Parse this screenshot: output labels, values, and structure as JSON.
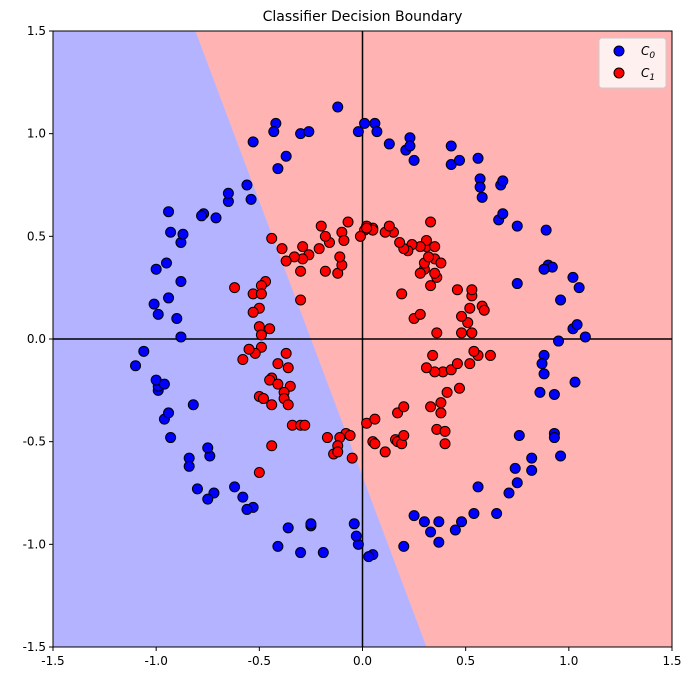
{
  "chart_data": {
    "type": "scatter",
    "title": "Classifier Decision Boundary",
    "xlabel": "",
    "ylabel": "",
    "xlim": [
      -1.5,
      1.5
    ],
    "ylim": [
      -1.5,
      1.5
    ],
    "xticks": [
      "-1.5",
      "-1.0",
      "-0.5",
      "0.0",
      "0.5",
      "1.0",
      "1.5"
    ],
    "yticks": [
      "-1.5",
      "-1.0",
      "-0.5",
      "0.0",
      "0.5",
      "1.0",
      "1.5"
    ],
    "grid": false,
    "legend_position": "top-right",
    "decision_boundary": {
      "line_points": [
        [
          -0.81,
          1.5
        ],
        [
          0.31,
          -1.5
        ]
      ],
      "left_region_class": "C0",
      "right_region_class": "C1",
      "left_region_color": "#b3b3ff",
      "right_region_color": "#ffb3b3"
    },
    "axes_lines": {
      "x0": 0.0,
      "y0": 0.0
    },
    "series": [
      {
        "name": "C0",
        "label_base": "C",
        "label_sub": "0",
        "color": "#0000ff",
        "points": [
          [
            -0.12,
            1.13
          ],
          [
            0.01,
            1.05
          ],
          [
            0.06,
            1.05
          ],
          [
            0.07,
            1.01
          ],
          [
            -0.02,
            1.01
          ],
          [
            -0.42,
            1.05
          ],
          [
            -0.43,
            1.01
          ],
          [
            -0.3,
            1.0
          ],
          [
            -0.26,
            1.01
          ],
          [
            -0.53,
            0.96
          ],
          [
            -0.37,
            0.89
          ],
          [
            -0.41,
            0.83
          ],
          [
            0.13,
            0.95
          ],
          [
            0.23,
            0.98
          ],
          [
            0.21,
            0.92
          ],
          [
            0.23,
            0.94
          ],
          [
            0.25,
            0.87
          ],
          [
            0.43,
            0.94
          ],
          [
            0.43,
            0.85
          ],
          [
            0.47,
            0.87
          ],
          [
            0.56,
            0.88
          ],
          [
            0.57,
            0.78
          ],
          [
            0.57,
            0.74
          ],
          [
            0.67,
            0.75
          ],
          [
            0.68,
            0.77
          ],
          [
            0.58,
            0.69
          ],
          [
            0.66,
            0.58
          ],
          [
            0.68,
            0.61
          ],
          [
            0.75,
            0.55
          ],
          [
            0.89,
            0.53
          ],
          [
            0.9,
            0.36
          ],
          [
            0.92,
            0.35
          ],
          [
            0.88,
            0.34
          ],
          [
            1.02,
            0.3
          ],
          [
            1.05,
            0.25
          ],
          [
            0.96,
            0.19
          ],
          [
            0.75,
            0.27
          ],
          [
            1.02,
            0.05
          ],
          [
            1.04,
            0.07
          ],
          [
            1.08,
            0.01
          ],
          [
            0.95,
            -0.01
          ],
          [
            0.88,
            -0.08
          ],
          [
            0.87,
            -0.12
          ],
          [
            0.88,
            -0.17
          ],
          [
            0.93,
            -0.27
          ],
          [
            0.86,
            -0.26
          ],
          [
            1.03,
            -0.21
          ],
          [
            0.93,
            -0.46
          ],
          [
            0.93,
            -0.48
          ],
          [
            0.76,
            -0.47
          ],
          [
            0.96,
            -0.57
          ],
          [
            0.82,
            -0.58
          ],
          [
            0.82,
            -0.64
          ],
          [
            0.74,
            -0.63
          ],
          [
            0.75,
            -0.7
          ],
          [
            0.71,
            -0.75
          ],
          [
            0.56,
            -0.72
          ],
          [
            0.65,
            -0.85
          ],
          [
            0.54,
            -0.85
          ],
          [
            0.48,
            -0.89
          ],
          [
            0.45,
            -0.93
          ],
          [
            0.37,
            -0.89
          ],
          [
            0.3,
            -0.89
          ],
          [
            0.33,
            -0.94
          ],
          [
            0.37,
            -0.99
          ],
          [
            0.25,
            -0.86
          ],
          [
            0.2,
            -1.01
          ],
          [
            0.05,
            -1.05
          ],
          [
            0.03,
            -1.06
          ],
          [
            -0.02,
            -1.0
          ],
          [
            -0.03,
            -0.96
          ],
          [
            -0.04,
            -0.9
          ],
          [
            -0.19,
            -1.04
          ],
          [
            -0.25,
            -0.91
          ],
          [
            -0.25,
            -0.9
          ],
          [
            -0.36,
            -0.92
          ],
          [
            -0.3,
            -1.04
          ],
          [
            -0.41,
            -1.01
          ],
          [
            -0.53,
            -0.82
          ],
          [
            -0.56,
            -0.83
          ],
          [
            -0.58,
            -0.77
          ],
          [
            -0.62,
            -0.72
          ],
          [
            -0.72,
            -0.75
          ],
          [
            -0.75,
            -0.78
          ],
          [
            -0.8,
            -0.73
          ],
          [
            -0.74,
            -0.57
          ],
          [
            -0.75,
            -0.53
          ],
          [
            -0.84,
            -0.58
          ],
          [
            -0.84,
            -0.62
          ],
          [
            -0.82,
            -0.32
          ],
          [
            -0.93,
            -0.48
          ],
          [
            -0.96,
            -0.39
          ],
          [
            -0.94,
            -0.36
          ],
          [
            -0.99,
            -0.25
          ],
          [
            -0.99,
            -0.23
          ],
          [
            -1.0,
            -0.2
          ],
          [
            -0.96,
            -0.22
          ],
          [
            -1.1,
            -0.13
          ],
          [
            -1.06,
            -0.06
          ],
          [
            -0.88,
            0.01
          ],
          [
            -0.9,
            0.1
          ],
          [
            -0.99,
            0.12
          ],
          [
            -1.01,
            0.17
          ],
          [
            -0.94,
            0.2
          ],
          [
            -0.88,
            0.28
          ],
          [
            -0.95,
            0.37
          ],
          [
            -1.0,
            0.34
          ],
          [
            -0.88,
            0.47
          ],
          [
            -0.93,
            0.52
          ],
          [
            -0.87,
            0.51
          ],
          [
            -0.94,
            0.62
          ],
          [
            -0.77,
            0.61
          ],
          [
            -0.78,
            0.6
          ],
          [
            -0.71,
            0.59
          ],
          [
            -0.65,
            0.67
          ],
          [
            -0.65,
            0.71
          ],
          [
            -0.56,
            0.75
          ],
          [
            -0.54,
            0.68
          ]
        ]
      },
      {
        "name": "C1",
        "label_base": "C",
        "label_sub": "1",
        "color": "#ff0000",
        "points": [
          [
            -0.07,
            0.57
          ],
          [
            -0.1,
            0.52
          ],
          [
            -0.09,
            0.48
          ],
          [
            -0.16,
            0.47
          ],
          [
            -0.18,
            0.5
          ],
          [
            -0.2,
            0.55
          ],
          [
            -0.21,
            0.44
          ],
          [
            -0.26,
            0.41
          ],
          [
            -0.29,
            0.45
          ],
          [
            -0.29,
            0.39
          ],
          [
            -0.33,
            0.4
          ],
          [
            -0.18,
            0.33
          ],
          [
            -0.12,
            0.32
          ],
          [
            -0.1,
            0.36
          ],
          [
            -0.11,
            0.4
          ],
          [
            -0.3,
            0.33
          ],
          [
            -0.37,
            0.38
          ],
          [
            -0.39,
            0.44
          ],
          [
            -0.44,
            0.49
          ],
          [
            -0.3,
            0.19
          ],
          [
            -0.47,
            0.28
          ],
          [
            -0.49,
            0.26
          ],
          [
            -0.53,
            0.22
          ],
          [
            -0.49,
            0.22
          ],
          [
            -0.5,
            0.15
          ],
          [
            -0.53,
            0.13
          ],
          [
            -0.62,
            0.25
          ],
          [
            -0.5,
            0.06
          ],
          [
            -0.45,
            0.05
          ],
          [
            -0.49,
            0.02
          ],
          [
            -0.49,
            -0.04
          ],
          [
            -0.52,
            -0.07
          ],
          [
            -0.58,
            -0.1
          ],
          [
            -0.55,
            -0.05
          ],
          [
            -0.37,
            -0.07
          ],
          [
            -0.41,
            -0.12
          ],
          [
            -0.36,
            -0.14
          ],
          [
            -0.35,
            -0.23
          ],
          [
            -0.38,
            -0.26
          ],
          [
            -0.44,
            -0.19
          ],
          [
            -0.45,
            -0.2
          ],
          [
            -0.41,
            -0.22
          ],
          [
            -0.5,
            -0.28
          ],
          [
            -0.48,
            -0.29
          ],
          [
            -0.44,
            -0.32
          ],
          [
            -0.38,
            -0.29
          ],
          [
            -0.36,
            -0.32
          ],
          [
            -0.34,
            -0.42
          ],
          [
            -0.3,
            -0.42
          ],
          [
            -0.28,
            -0.42
          ],
          [
            -0.44,
            -0.52
          ],
          [
            -0.5,
            -0.65
          ],
          [
            -0.17,
            -0.48
          ],
          [
            -0.08,
            -0.46
          ],
          [
            -0.06,
            -0.47
          ],
          [
            -0.11,
            -0.48
          ],
          [
            -0.12,
            -0.52
          ],
          [
            -0.14,
            -0.56
          ],
          [
            -0.12,
            -0.55
          ],
          [
            -0.05,
            -0.58
          ],
          [
            0.02,
            -0.41
          ],
          [
            0.06,
            -0.39
          ],
          [
            0.05,
            -0.5
          ],
          [
            0.06,
            -0.51
          ],
          [
            0.11,
            -0.55
          ],
          [
            0.16,
            -0.49
          ],
          [
            0.17,
            -0.5
          ],
          [
            0.19,
            -0.51
          ],
          [
            0.2,
            -0.47
          ],
          [
            0.17,
            -0.36
          ],
          [
            0.2,
            -0.33
          ],
          [
            0.33,
            -0.33
          ],
          [
            0.36,
            -0.44
          ],
          [
            0.4,
            -0.51
          ],
          [
            0.4,
            -0.45
          ],
          [
            0.38,
            -0.36
          ],
          [
            0.38,
            -0.31
          ],
          [
            0.41,
            -0.26
          ],
          [
            0.39,
            -0.16
          ],
          [
            0.35,
            -0.16
          ],
          [
            0.31,
            -0.14
          ],
          [
            0.34,
            -0.08
          ],
          [
            0.43,
            -0.15
          ],
          [
            0.46,
            -0.12
          ],
          [
            0.47,
            -0.24
          ],
          [
            0.52,
            -0.12
          ],
          [
            0.56,
            -0.08
          ],
          [
            0.62,
            -0.08
          ],
          [
            0.54,
            -0.06
          ],
          [
            0.36,
            0.03
          ],
          [
            0.48,
            0.03
          ],
          [
            0.53,
            0.03
          ],
          [
            0.51,
            0.08
          ],
          [
            0.48,
            0.11
          ],
          [
            0.58,
            0.16
          ],
          [
            0.59,
            0.14
          ],
          [
            0.53,
            0.21
          ],
          [
            0.53,
            0.24
          ],
          [
            0.52,
            0.15
          ],
          [
            0.46,
            0.24
          ],
          [
            0.36,
            0.3
          ],
          [
            0.35,
            0.32
          ],
          [
            0.3,
            0.34
          ],
          [
            0.28,
            0.32
          ],
          [
            0.3,
            0.37
          ],
          [
            0.35,
            0.39
          ],
          [
            0.38,
            0.37
          ],
          [
            0.32,
            0.4
          ],
          [
            0.31,
            0.45
          ],
          [
            0.31,
            0.48
          ],
          [
            0.35,
            0.45
          ],
          [
            0.28,
            0.45
          ],
          [
            0.24,
            0.46
          ],
          [
            0.22,
            0.43
          ],
          [
            0.2,
            0.44
          ],
          [
            0.18,
            0.47
          ],
          [
            0.15,
            0.52
          ],
          [
            0.11,
            0.52
          ],
          [
            0.13,
            0.55
          ],
          [
            0.05,
            0.54
          ],
          [
            0.02,
            0.55
          ],
          [
            0.01,
            0.53
          ],
          [
            -0.01,
            0.5
          ],
          [
            0.05,
            0.53
          ],
          [
            0.19,
            0.22
          ],
          [
            0.25,
            0.1
          ],
          [
            0.28,
            0.12
          ],
          [
            0.33,
            0.26
          ],
          [
            0.33,
            0.57
          ],
          [
            0.02,
            0.54
          ]
        ]
      }
    ]
  }
}
